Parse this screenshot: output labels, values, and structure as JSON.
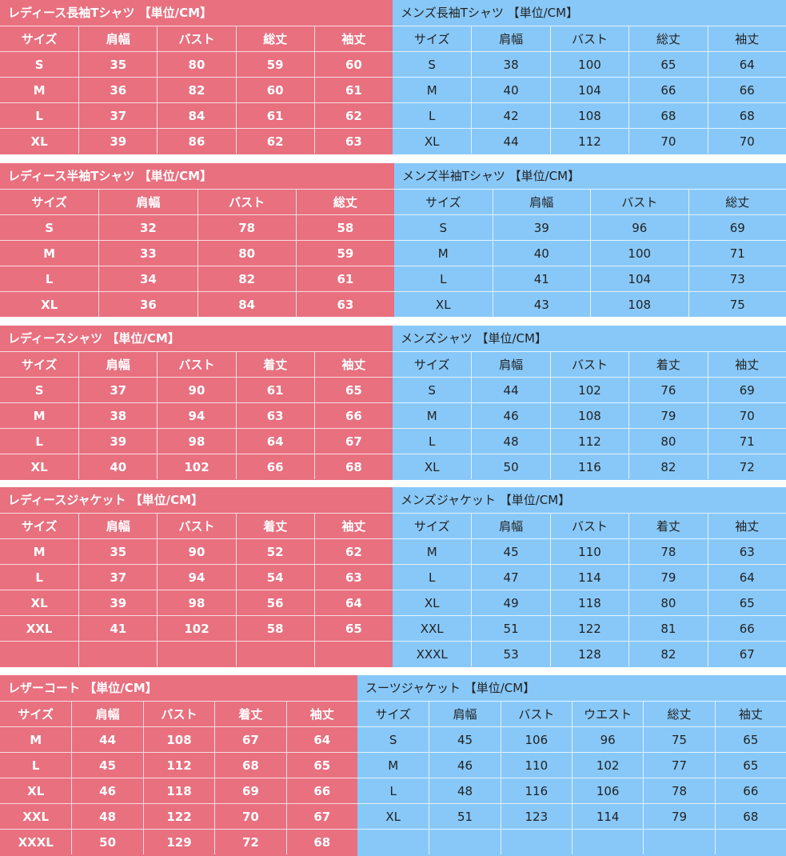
{
  "tables": [
    {
      "title": "レディース長袖Tシャツ 【単位/CM】",
      "headers": [
        "サイズ",
        "肩幅",
        "バスト",
        "総丈",
        "袖丈"
      ],
      "rows": [
        [
          "S",
          "35",
          "80",
          "59",
          "60"
        ],
        [
          "M",
          "36",
          "82",
          "60",
          "61"
        ],
        [
          "L",
          "37",
          "84",
          "61",
          "62"
        ],
        [
          "XL",
          "39",
          "86",
          "62",
          "63"
        ]
      ]
    },
    {
      "title": "メンズ長袖Tシャツ 【単位/CM】",
      "headers": [
        "サイズ",
        "肩幅",
        "バスト",
        "総丈",
        "袖丈"
      ],
      "rows": [
        [
          "S",
          "38",
          "100",
          "65",
          "64"
        ],
        [
          "M",
          "40",
          "104",
          "66",
          "66"
        ],
        [
          "L",
          "42",
          "108",
          "68",
          "68"
        ],
        [
          "XL",
          "44",
          "112",
          "70",
          "70"
        ]
      ]
    },
    {
      "title": "レディース半袖Tシャツ 【単位/CM】",
      "headers": [
        "サイズ",
        "肩幅",
        "バスト",
        "総丈"
      ],
      "rows": [
        [
          "S",
          "32",
          "78",
          "58"
        ],
        [
          "M",
          "33",
          "80",
          "59"
        ],
        [
          "L",
          "34",
          "82",
          "61"
        ],
        [
          "XL",
          "36",
          "84",
          "63"
        ]
      ]
    },
    {
      "title": "メンズ半袖Tシャツ 【単位/CM】",
      "headers": [
        "サイズ",
        "肩幅",
        "バスト",
        "総丈"
      ],
      "rows": [
        [
          "S",
          "39",
          "96",
          "69"
        ],
        [
          "M",
          "40",
          "100",
          "71"
        ],
        [
          "L",
          "41",
          "104",
          "73"
        ],
        [
          "XL",
          "43",
          "108",
          "75"
        ]
      ]
    },
    {
      "title": "レディースシャツ 【単位/CM】",
      "headers": [
        "サイズ",
        "肩幅",
        "バスト",
        "着丈",
        "袖丈"
      ],
      "rows": [
        [
          "S",
          "37",
          "90",
          "61",
          "65"
        ],
        [
          "M",
          "38",
          "94",
          "63",
          "66"
        ],
        [
          "L",
          "39",
          "98",
          "64",
          "67"
        ],
        [
          "XL",
          "40",
          "102",
          "66",
          "68"
        ]
      ]
    },
    {
      "title": "メンズシャツ 【単位/CM】",
      "headers": [
        "サイズ",
        "肩幅",
        "バスト",
        "着丈",
        "袖丈"
      ],
      "rows": [
        [
          "S",
          "44",
          "102",
          "76",
          "69"
        ],
        [
          "M",
          "46",
          "108",
          "79",
          "70"
        ],
        [
          "L",
          "48",
          "112",
          "80",
          "71"
        ],
        [
          "XL",
          "50",
          "116",
          "82",
          "72"
        ]
      ]
    },
    {
      "title": "レディースジャケット 【単位/CM】",
      "headers": [
        "サイズ",
        "肩幅",
        "バスト",
        "着丈",
        "袖丈"
      ],
      "rows": [
        [
          "M",
          "35",
          "90",
          "52",
          "62"
        ],
        [
          "L",
          "37",
          "94",
          "54",
          "63"
        ],
        [
          "XL",
          "39",
          "98",
          "56",
          "64"
        ],
        [
          "XXL",
          "41",
          "102",
          "58",
          "65"
        ],
        [
          "",
          "",
          "",
          "",
          ""
        ]
      ]
    },
    {
      "title": "メンズジャケット 【単位/CM】",
      "headers": [
        "サイズ",
        "肩幅",
        "バスト",
        "着丈",
        "袖丈"
      ],
      "rows": [
        [
          "M",
          "45",
          "110",
          "78",
          "63"
        ],
        [
          "L",
          "47",
          "114",
          "79",
          "64"
        ],
        [
          "XL",
          "49",
          "118",
          "80",
          "65"
        ],
        [
          "XXL",
          "51",
          "122",
          "81",
          "66"
        ],
        [
          "XXXL",
          "53",
          "128",
          "82",
          "67"
        ]
      ]
    },
    {
      "title": "レザーコート 【単位/CM】",
      "headers": [
        "サイズ",
        "肩幅",
        "バスト",
        "着丈",
        "袖丈"
      ],
      "rows": [
        [
          "M",
          "44",
          "108",
          "67",
          "64"
        ],
        [
          "L",
          "45",
          "112",
          "68",
          "65"
        ],
        [
          "XL",
          "46",
          "118",
          "69",
          "66"
        ],
        [
          "XXL",
          "48",
          "122",
          "70",
          "67"
        ],
        [
          "XXXL",
          "50",
          "129",
          "72",
          "68"
        ]
      ]
    },
    {
      "title": "スーツジャケット 【単位/CM】",
      "headers": [
        "サイズ",
        "肩幅",
        "バスト",
        "ウエスト",
        "総丈",
        "袖丈"
      ],
      "rows": [
        [
          "S",
          "45",
          "106",
          "96",
          "75",
          "65"
        ],
        [
          "M",
          "46",
          "110",
          "102",
          "77",
          "65"
        ],
        [
          "L",
          "48",
          "116",
          "106",
          "78",
          "66"
        ],
        [
          "XL",
          "51",
          "123",
          "114",
          "79",
          "68"
        ],
        [
          "",
          "",
          "",
          "",
          "",
          ""
        ]
      ]
    }
  ]
}
